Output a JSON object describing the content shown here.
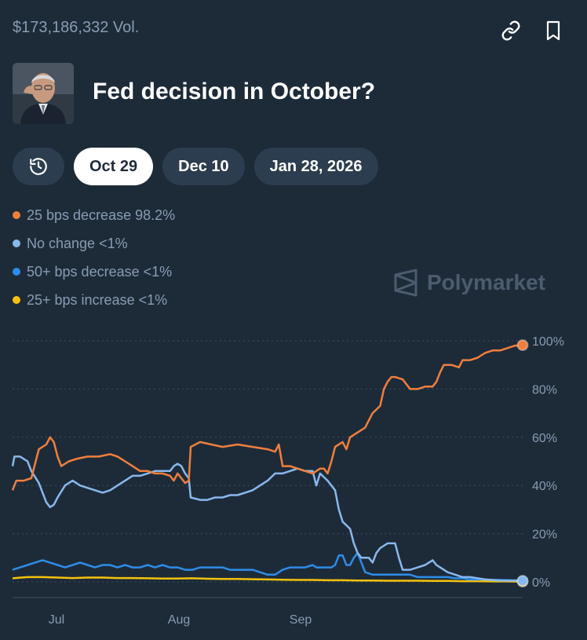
{
  "header": {
    "volume": "$173,186,332 Vol.",
    "title": "Fed decision in October?",
    "link_icon": "link-icon",
    "bookmark_icon": "bookmark-icon"
  },
  "tabs": [
    {
      "label": "",
      "icon": "history-icon",
      "active": false
    },
    {
      "label": "Oct 29",
      "active": true
    },
    {
      "label": "Dec 10",
      "active": false
    },
    {
      "label": "Jan 28, 2026",
      "active": false
    }
  ],
  "legend": [
    {
      "label": "25 bps decrease 98.2%",
      "color": "#f07f3d"
    },
    {
      "label": "No change <1%",
      "color": "#89b8ec"
    },
    {
      "label": "50+ bps decrease <1%",
      "color": "#2e8ce8"
    },
    {
      "label": "25+ bps increase <1%",
      "color": "#f5c20b"
    }
  ],
  "watermark": "Polymarket",
  "chart_data": {
    "type": "line",
    "ylim": [
      0,
      100
    ],
    "yticks": [
      "100%",
      "80%",
      "60%",
      "40%",
      "20%",
      "0%"
    ],
    "ytick_values": [
      100,
      80,
      60,
      40,
      20,
      0
    ],
    "xticks": [
      "Jul",
      "Aug",
      "Sep"
    ],
    "xtick_days": [
      17,
      47,
      77
    ],
    "x_range_days": [
      0,
      126
    ],
    "grid": true,
    "series": [
      {
        "name": "25 bps decrease",
        "color": "#f07f3d",
        "end_marker": true,
        "points": [
          [
            0,
            38
          ],
          [
            1,
            42
          ],
          [
            3,
            42
          ],
          [
            5,
            43
          ],
          [
            7,
            55
          ],
          [
            9,
            57
          ],
          [
            10,
            60
          ],
          [
            11,
            58
          ],
          [
            12,
            52
          ],
          [
            13,
            48
          ],
          [
            15,
            50
          ],
          [
            17,
            51
          ],
          [
            20,
            52
          ],
          [
            23,
            52
          ],
          [
            26,
            53
          ],
          [
            28,
            52
          ],
          [
            30,
            50
          ],
          [
            32,
            48
          ],
          [
            34,
            46
          ],
          [
            36,
            46
          ],
          [
            38,
            45
          ],
          [
            40,
            45
          ],
          [
            42,
            44
          ],
          [
            43,
            42
          ],
          [
            44,
            45
          ],
          [
            45,
            43
          ],
          [
            46,
            41
          ],
          [
            47,
            42
          ],
          [
            47.5,
            56
          ],
          [
            50,
            58
          ],
          [
            53,
            57
          ],
          [
            56,
            56
          ],
          [
            60,
            57
          ],
          [
            64,
            56
          ],
          [
            68,
            55
          ],
          [
            70,
            54
          ],
          [
            71,
            57
          ],
          [
            72,
            48
          ],
          [
            74,
            48
          ],
          [
            76,
            47
          ],
          [
            78,
            46
          ],
          [
            80,
            45
          ],
          [
            82,
            47
          ],
          [
            83,
            47
          ],
          [
            84,
            45
          ],
          [
            85,
            50
          ],
          [
            86,
            56
          ],
          [
            88,
            58
          ],
          [
            89,
            55
          ],
          [
            90,
            60
          ],
          [
            92,
            62
          ],
          [
            94,
            64
          ],
          [
            95,
            67
          ],
          [
            96,
            70
          ],
          [
            98,
            73
          ],
          [
            99,
            80
          ],
          [
            100,
            83
          ],
          [
            101,
            85
          ],
          [
            102,
            85
          ],
          [
            104,
            84
          ],
          [
            106,
            80
          ],
          [
            108,
            80
          ],
          [
            110,
            81
          ],
          [
            112,
            81
          ],
          [
            113,
            83
          ],
          [
            114,
            87
          ],
          [
            115,
            90
          ],
          [
            117,
            90
          ],
          [
            119,
            89
          ],
          [
            120,
            92
          ],
          [
            122,
            92
          ],
          [
            124,
            93
          ],
          [
            126,
            95
          ],
          [
            128,
            96
          ],
          [
            130,
            96
          ],
          [
            132,
            97
          ],
          [
            134,
            98
          ],
          [
            135,
            98
          ],
          [
            136,
            98.2
          ]
        ]
      },
      {
        "name": "No change",
        "color": "#89b8ec",
        "end_marker": true,
        "points": [
          [
            0,
            48
          ],
          [
            0.5,
            52
          ],
          [
            2,
            52
          ],
          [
            4,
            50
          ],
          [
            5,
            46
          ],
          [
            7,
            41
          ],
          [
            9,
            33
          ],
          [
            10,
            31
          ],
          [
            11,
            32
          ],
          [
            12,
            35
          ],
          [
            14,
            40
          ],
          [
            16,
            42
          ],
          [
            18,
            40
          ],
          [
            20,
            39
          ],
          [
            22,
            38
          ],
          [
            24,
            37
          ],
          [
            26,
            38
          ],
          [
            28,
            40
          ],
          [
            30,
            42
          ],
          [
            32,
            44
          ],
          [
            34,
            44
          ],
          [
            36,
            45
          ],
          [
            38,
            46
          ],
          [
            40,
            46
          ],
          [
            42,
            46
          ],
          [
            43,
            48
          ],
          [
            44,
            49
          ],
          [
            45,
            48
          ],
          [
            46,
            45
          ],
          [
            47,
            43
          ],
          [
            47.5,
            35
          ],
          [
            50,
            34
          ],
          [
            52,
            34
          ],
          [
            54,
            35
          ],
          [
            56,
            35
          ],
          [
            58,
            36
          ],
          [
            60,
            36
          ],
          [
            62,
            37
          ],
          [
            64,
            38
          ],
          [
            66,
            40
          ],
          [
            68,
            42
          ],
          [
            70,
            45
          ],
          [
            72,
            45
          ],
          [
            74,
            46
          ],
          [
            76,
            47
          ],
          [
            78,
            46
          ],
          [
            80,
            46
          ],
          [
            81,
            40
          ],
          [
            82,
            45
          ],
          [
            84,
            42
          ],
          [
            86,
            38
          ],
          [
            87,
            30
          ],
          [
            88,
            25
          ],
          [
            90,
            22
          ],
          [
            91,
            16
          ],
          [
            92,
            12
          ],
          [
            93,
            10
          ],
          [
            95,
            10
          ],
          [
            96,
            8
          ],
          [
            97,
            12
          ],
          [
            98,
            14
          ],
          [
            100,
            16
          ],
          [
            101,
            16
          ],
          [
            102,
            16
          ],
          [
            103,
            10
          ],
          [
            104,
            5
          ],
          [
            105,
            5
          ],
          [
            106,
            5
          ],
          [
            108,
            6
          ],
          [
            110,
            7
          ],
          [
            111,
            8
          ],
          [
            112,
            9
          ],
          [
            113,
            7
          ],
          [
            114,
            6
          ],
          [
            115,
            5
          ],
          [
            116,
            4
          ],
          [
            118,
            3
          ],
          [
            120,
            2
          ],
          [
            122,
            2
          ],
          [
            124,
            1.5
          ],
          [
            126,
            1
          ],
          [
            128,
            0.8
          ],
          [
            130,
            0.6
          ],
          [
            136,
            0.5
          ]
        ]
      },
      {
        "name": "50+ bps decrease",
        "color": "#2e8ce8",
        "end_marker": false,
        "points": [
          [
            0,
            5
          ],
          [
            2,
            6
          ],
          [
            4,
            7
          ],
          [
            6,
            8
          ],
          [
            8,
            9
          ],
          [
            10,
            8
          ],
          [
            12,
            7
          ],
          [
            14,
            6
          ],
          [
            16,
            7
          ],
          [
            18,
            8
          ],
          [
            20,
            7
          ],
          [
            22,
            6
          ],
          [
            24,
            7
          ],
          [
            26,
            7
          ],
          [
            28,
            6
          ],
          [
            30,
            7
          ],
          [
            32,
            6
          ],
          [
            34,
            6
          ],
          [
            36,
            7
          ],
          [
            38,
            6
          ],
          [
            40,
            7
          ],
          [
            42,
            6
          ],
          [
            44,
            6
          ],
          [
            46,
            5
          ],
          [
            48,
            5
          ],
          [
            50,
            6
          ],
          [
            52,
            6
          ],
          [
            54,
            6
          ],
          [
            56,
            6
          ],
          [
            58,
            5
          ],
          [
            60,
            5
          ],
          [
            62,
            5
          ],
          [
            64,
            5
          ],
          [
            66,
            4
          ],
          [
            68,
            3
          ],
          [
            70,
            3
          ],
          [
            72,
            5
          ],
          [
            74,
            6
          ],
          [
            76,
            6
          ],
          [
            78,
            6
          ],
          [
            80,
            7
          ],
          [
            81,
            6
          ],
          [
            82,
            6
          ],
          [
            84,
            6
          ],
          [
            85,
            6
          ],
          [
            86,
            7
          ],
          [
            87,
            11
          ],
          [
            88,
            11
          ],
          [
            89,
            7
          ],
          [
            90,
            7
          ],
          [
            91,
            10
          ],
          [
            92,
            12
          ],
          [
            93,
            8
          ],
          [
            94,
            4
          ],
          [
            96,
            3
          ],
          [
            98,
            3
          ],
          [
            100,
            3
          ],
          [
            102,
            3
          ],
          [
            104,
            3
          ],
          [
            106,
            3
          ],
          [
            108,
            2
          ],
          [
            110,
            2
          ],
          [
            112,
            2
          ],
          [
            114,
            2
          ],
          [
            116,
            2
          ],
          [
            118,
            1.5
          ],
          [
            120,
            1.5
          ],
          [
            122,
            1
          ],
          [
            124,
            1
          ],
          [
            126,
            1
          ],
          [
            128,
            0.8
          ],
          [
            130,
            0.8
          ],
          [
            136,
            0.6
          ]
        ]
      },
      {
        "name": "25+ bps increase",
        "color": "#f5c20b",
        "end_marker": true,
        "points": [
          [
            0,
            1.5
          ],
          [
            4,
            2
          ],
          [
            8,
            2
          ],
          [
            12,
            1.8
          ],
          [
            16,
            1.6
          ],
          [
            20,
            1.8
          ],
          [
            24,
            1.8
          ],
          [
            28,
            1.6
          ],
          [
            32,
            1.6
          ],
          [
            36,
            1.5
          ],
          [
            40,
            1.4
          ],
          [
            44,
            1.4
          ],
          [
            48,
            1.5
          ],
          [
            52,
            1.3
          ],
          [
            56,
            1.2
          ],
          [
            60,
            1.2
          ],
          [
            64,
            1.1
          ],
          [
            68,
            1.0
          ],
          [
            72,
            0.9
          ],
          [
            76,
            0.8
          ],
          [
            80,
            0.8
          ],
          [
            84,
            0.7
          ],
          [
            88,
            0.7
          ],
          [
            92,
            0.6
          ],
          [
            96,
            0.6
          ],
          [
            100,
            0.5
          ],
          [
            104,
            0.5
          ],
          [
            108,
            0.5
          ],
          [
            112,
            0.4
          ],
          [
            116,
            0.4
          ],
          [
            120,
            0.3
          ],
          [
            124,
            0.3
          ],
          [
            128,
            0.2
          ],
          [
            132,
            0.2
          ],
          [
            136,
            0.1
          ]
        ]
      }
    ]
  }
}
